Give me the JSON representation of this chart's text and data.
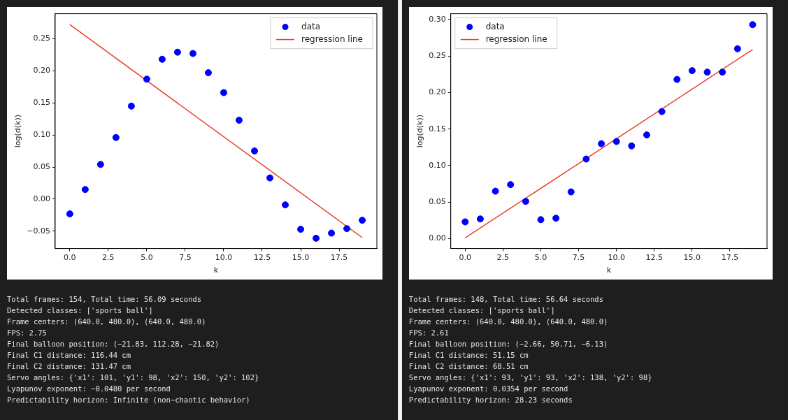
{
  "chart_data": [
    {
      "type": "scatter",
      "xlabel": "k",
      "ylabel": "log(d(k))",
      "legend": "top right",
      "grid": false,
      "xlim": [
        -0.95,
        19.95
      ],
      "ylim": [
        -0.077,
        0.289
      ],
      "xticks": [
        {
          "value": 0,
          "label": "0.0"
        },
        {
          "value": 2.5,
          "label": "2.5"
        },
        {
          "value": 5,
          "label": "5.0"
        },
        {
          "value": 7.5,
          "label": "7.5"
        },
        {
          "value": 10,
          "label": "10.0"
        },
        {
          "value": 12.5,
          "label": "12.5"
        },
        {
          "value": 15,
          "label": "15.0"
        },
        {
          "value": 17.5,
          "label": "17.5"
        }
      ],
      "yticks": [
        {
          "value": -0.05,
          "label": "−0.05"
        },
        {
          "value": 0,
          "label": "0.00"
        },
        {
          "value": 0.05,
          "label": "0.05"
        },
        {
          "value": 0.1,
          "label": "0.10"
        },
        {
          "value": 0.15,
          "label": "0.15"
        },
        {
          "value": 0.2,
          "label": "0.20"
        },
        {
          "value": 0.25,
          "label": "0.25"
        }
      ],
      "series": [
        {
          "name": "data",
          "type": "scatter",
          "marker": "circle",
          "color": "#0000ff",
          "x": [
            0,
            1,
            2,
            3,
            4,
            5,
            6,
            7,
            8,
            9,
            10,
            11,
            12,
            13,
            14,
            15,
            16,
            17,
            18,
            19
          ],
          "values": [
            -0.023,
            0.015,
            0.054,
            0.096,
            0.145,
            0.187,
            0.218,
            0.229,
            0.227,
            0.197,
            0.166,
            0.123,
            0.075,
            0.033,
            -0.009,
            -0.047,
            -0.061,
            -0.053,
            -0.046,
            -0.033
          ]
        },
        {
          "name": "regression line",
          "type": "line",
          "marker": "none",
          "line_style": "solid",
          "color": "#e8402c",
          "x": [
            0,
            19
          ],
          "values": [
            0.272,
            -0.06
          ]
        }
      ],
      "annotations": [
        "Total frames: 154, Total time: 56.09 seconds",
        "Detected classes: ['sports ball']",
        "Frame centers: (640.0, 480.0), (640.0, 480.0)",
        "FPS: 2.75",
        "Final balloon position: (−21.83, 112.28, −21.82)",
        "Final C1 distance: 116.44 cm",
        "Final C2 distance: 131.47 cm",
        "Servo angles: {'x1': 101, 'y1': 98, 'x2': 150, 'y2': 102}",
        "Lyapunov exponent: −0.0480 per second",
        "Predictability horizon: Infinite (non−chaotic behavior)"
      ]
    },
    {
      "type": "scatter",
      "xlabel": "k",
      "ylabel": "log(d(k))",
      "legend": "top left",
      "grid": false,
      "xlim": [
        -0.95,
        19.95
      ],
      "ylim": [
        -0.0135,
        0.308
      ],
      "xticks": [
        {
          "value": 0,
          "label": "0.0"
        },
        {
          "value": 2.5,
          "label": "2.5"
        },
        {
          "value": 5,
          "label": "5.0"
        },
        {
          "value": 7.5,
          "label": "7.5"
        },
        {
          "value": 10,
          "label": "10.0"
        },
        {
          "value": 12.5,
          "label": "12.5"
        },
        {
          "value": 15,
          "label": "15.0"
        },
        {
          "value": 17.5,
          "label": "17.5"
        }
      ],
      "yticks": [
        {
          "value": 0,
          "label": "0.00"
        },
        {
          "value": 0.05,
          "label": "0.05"
        },
        {
          "value": 0.1,
          "label": "0.10"
        },
        {
          "value": 0.15,
          "label": "0.15"
        },
        {
          "value": 0.2,
          "label": "0.20"
        },
        {
          "value": 0.25,
          "label": "0.25"
        },
        {
          "value": 0.3,
          "label": "0.30"
        }
      ],
      "series": [
        {
          "name": "data",
          "type": "scatter",
          "marker": "circle",
          "color": "#0000ff",
          "x": [
            0,
            1,
            2,
            3,
            4,
            5,
            6,
            7,
            8,
            9,
            10,
            11,
            12,
            13,
            14,
            15,
            16,
            17,
            18,
            19
          ],
          "values": [
            0.023,
            0.027,
            0.065,
            0.074,
            0.051,
            0.026,
            0.028,
            0.064,
            0.109,
            0.13,
            0.133,
            0.127,
            0.142,
            0.174,
            0.218,
            0.23,
            0.228,
            0.228,
            0.26,
            0.293
          ]
        },
        {
          "name": "regression line",
          "type": "line",
          "marker": "none",
          "line_style": "solid",
          "color": "#e8402c",
          "x": [
            0,
            19
          ],
          "values": [
            0.001,
            0.259
          ]
        }
      ],
      "annotations": [
        "Total frames: 148, Total time: 56.64 seconds",
        "Detected classes: ['sports ball']",
        "Frame centers: (640.0, 480.0), (640.0, 480.0)",
        "FPS: 2.61",
        "Final balloon position: (−2.66, 50.71, −6.13)",
        "Final C1 distance: 51.15 cm",
        "Final C2 distance: 68.51 cm",
        "Servo angles: {'x1': 93, 'y1': 93, 'x2': 138, 'y2': 98}",
        "Lyapunov exponent: 0.0354 per second",
        "Predictability horizon: 28.23 seconds"
      ]
    }
  ]
}
